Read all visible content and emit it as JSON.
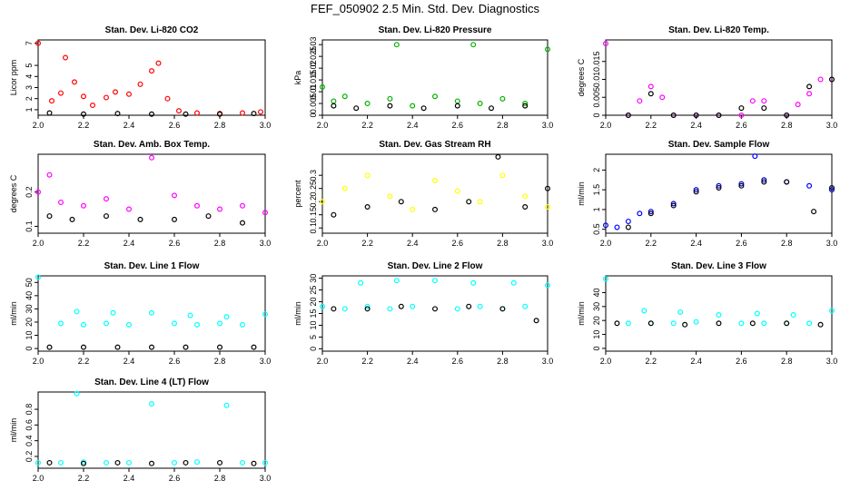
{
  "figure_title": "FEF_050902  2.5 Min. Std. Dev. Diagnostics",
  "chart_data": [
    {
      "type": "scatter",
      "title": "Stan. Dev. Li-820 CO2",
      "ylabel": "Licor ppm",
      "xlim": [
        2.0,
        3.0
      ],
      "ylim": [
        0.5,
        7.3
      ],
      "xticks": [
        2.0,
        2.2,
        2.4,
        2.6,
        2.8,
        3.0
      ],
      "yticks": [
        1,
        2,
        3,
        4,
        5,
        7
      ],
      "colors": [
        "#ff0000",
        "#000000"
      ],
      "series": [
        {
          "color": "#ff0000",
          "x": [
            2.0,
            2.06,
            2.1,
            2.12,
            2.16,
            2.2,
            2.24,
            2.3,
            2.34,
            2.4,
            2.45,
            2.5,
            2.53,
            2.57,
            2.62,
            2.7,
            2.8,
            2.9,
            2.98
          ],
          "y": [
            7.0,
            1.8,
            2.5,
            5.7,
            3.5,
            2.2,
            1.4,
            2.1,
            2.6,
            2.4,
            3.3,
            4.5,
            5.2,
            2.0,
            0.9,
            0.7,
            0.65,
            0.7,
            0.8
          ]
        },
        {
          "color": "#000000",
          "x": [
            2.05,
            2.2,
            2.35,
            2.5,
            2.65,
            2.8,
            2.95
          ],
          "y": [
            0.7,
            0.6,
            0.65,
            0.6,
            0.6,
            0.6,
            0.65
          ]
        }
      ]
    },
    {
      "type": "scatter",
      "title": "Stan. Dev. Li-820 Pressure",
      "ylabel": "kPa",
      "xlim": [
        2.0,
        3.0
      ],
      "ylim": [
        0,
        0.032
      ],
      "xticks": [
        2.0,
        2.2,
        2.4,
        2.6,
        2.8,
        3.0
      ],
      "yticks": [
        0.0,
        0.005,
        0.01,
        0.015,
        0.02,
        0.025,
        0.03
      ],
      "colors": [
        "#00b000",
        "#000000"
      ],
      "series": [
        {
          "color": "#00b000",
          "x": [
            2.0,
            2.05,
            2.1,
            2.2,
            2.3,
            2.33,
            2.4,
            2.5,
            2.6,
            2.67,
            2.7,
            2.8,
            2.9,
            3.0
          ],
          "y": [
            0.012,
            0.006,
            0.008,
            0.005,
            0.007,
            0.03,
            0.004,
            0.008,
            0.006,
            0.03,
            0.005,
            0.007,
            0.005,
            0.028
          ]
        },
        {
          "color": "#000000",
          "x": [
            2.05,
            2.15,
            2.3,
            2.45,
            2.6,
            2.75,
            2.9
          ],
          "y": [
            0.004,
            0.003,
            0.004,
            0.003,
            0.004,
            0.003,
            0.004
          ]
        }
      ]
    },
    {
      "type": "scatter",
      "title": "Stan. Dev. Li-820 Temp.",
      "ylabel": "degrees C",
      "xlim": [
        2.0,
        3.0
      ],
      "ylim": [
        0,
        0.021
      ],
      "xticks": [
        2.0,
        2.2,
        2.4,
        2.6,
        2.8,
        3.0
      ],
      "yticks": [
        0.0,
        0.005,
        0.01,
        0.015
      ],
      "colors": [
        "#ff00ff",
        "#000000"
      ],
      "series": [
        {
          "color": "#ff00ff",
          "x": [
            2.0,
            2.1,
            2.15,
            2.2,
            2.25,
            2.3,
            2.4,
            2.5,
            2.6,
            2.65,
            2.7,
            2.8,
            2.85,
            2.9,
            2.95,
            3.0
          ],
          "y": [
            0.02,
            0.0,
            0.004,
            0.008,
            0.005,
            0.0,
            0.0,
            0.0,
            0.0,
            0.004,
            0.004,
            0.0,
            0.003,
            0.006,
            0.01,
            0.01
          ]
        },
        {
          "color": "#000000",
          "x": [
            2.1,
            2.2,
            2.3,
            2.4,
            2.5,
            2.6,
            2.7,
            2.8,
            2.9,
            3.0
          ],
          "y": [
            0.0,
            0.006,
            0.0,
            0.0,
            0.0,
            0.002,
            0.002,
            0.0,
            0.008,
            0.01
          ]
        }
      ]
    },
    {
      "type": "scatter",
      "title": "Stan. Dev. Amb. Box Temp.",
      "ylabel": "degrees C",
      "xlim": [
        2.0,
        3.0
      ],
      "ylim": [
        0.08,
        0.31
      ],
      "xticks": [
        2.0,
        2.2,
        2.4,
        2.6,
        2.8,
        3.0
      ],
      "yticks": [
        0.1,
        0.2
      ],
      "colors": [
        "#ff00ff",
        "#000000"
      ],
      "series": [
        {
          "color": "#ff00ff",
          "x": [
            2.0,
            2.05,
            2.1,
            2.2,
            2.3,
            2.4,
            2.5,
            2.6,
            2.7,
            2.8,
            2.9,
            3.0
          ],
          "y": [
            0.2,
            0.25,
            0.17,
            0.16,
            0.18,
            0.15,
            0.3,
            0.19,
            0.16,
            0.15,
            0.16,
            0.14
          ]
        },
        {
          "color": "#000000",
          "x": [
            2.05,
            2.15,
            2.3,
            2.45,
            2.6,
            2.75,
            2.9
          ],
          "y": [
            0.13,
            0.12,
            0.13,
            0.12,
            0.12,
            0.13,
            0.11
          ]
        }
      ]
    },
    {
      "type": "scatter",
      "title": "Stan. Dev. Gas Stream RH",
      "ylabel": "percent",
      "xlim": [
        2.0,
        3.0
      ],
      "ylim": [
        0.08,
        0.38
      ],
      "xticks": [
        2.0,
        2.2,
        2.4,
        2.6,
        2.8,
        3.0
      ],
      "yticks": [
        0.1,
        0.15,
        0.2,
        0.25,
        0.3
      ],
      "colors": [
        "#ffff00",
        "#000000"
      ],
      "series": [
        {
          "color": "#ffff00",
          "x": [
            2.0,
            2.1,
            2.2,
            2.3,
            2.4,
            2.5,
            2.6,
            2.7,
            2.8,
            2.9,
            3.0
          ],
          "y": [
            0.2,
            0.25,
            0.3,
            0.22,
            0.17,
            0.28,
            0.24,
            0.2,
            0.3,
            0.22,
            0.18
          ]
        },
        {
          "color": "#000000",
          "x": [
            2.05,
            2.2,
            2.35,
            2.5,
            2.65,
            2.78,
            2.9,
            3.0
          ],
          "y": [
            0.15,
            0.18,
            0.2,
            0.17,
            0.2,
            0.37,
            0.18,
            0.25
          ]
        }
      ]
    },
    {
      "type": "scatter",
      "title": "Stan. Dev. Sample Flow",
      "ylabel": "ml/min",
      "xlim": [
        2.0,
        3.0
      ],
      "ylim": [
        0.4,
        2.4
      ],
      "xticks": [
        2.0,
        2.2,
        2.4,
        2.6,
        2.8,
        3.0
      ],
      "yticks": [
        0.5,
        1.0,
        1.5,
        2.0
      ],
      "colors": [
        "#0000ff",
        "#000000"
      ],
      "series": [
        {
          "color": "#0000ff",
          "x": [
            2.0,
            2.05,
            2.1,
            2.15,
            2.2,
            2.3,
            2.4,
            2.5,
            2.6,
            2.66,
            2.7,
            2.8,
            2.9,
            3.0
          ],
          "y": [
            0.6,
            0.55,
            0.7,
            0.9,
            0.95,
            1.15,
            1.5,
            1.6,
            1.65,
            2.35,
            1.75,
            1.7,
            1.6,
            1.5
          ]
        },
        {
          "color": "#000000",
          "x": [
            2.1,
            2.2,
            2.3,
            2.4,
            2.5,
            2.6,
            2.7,
            2.8,
            2.92,
            3.0
          ],
          "y": [
            0.55,
            0.9,
            1.1,
            1.45,
            1.55,
            1.6,
            1.7,
            1.7,
            0.95,
            1.55
          ]
        }
      ]
    },
    {
      "type": "scatter",
      "title": "Stan. Dev. Line 1 Flow",
      "ylabel": "ml/min",
      "xlim": [
        2.0,
        3.0
      ],
      "ylim": [
        -2,
        55
      ],
      "xticks": [
        2.0,
        2.2,
        2.4,
        2.6,
        2.8,
        3.0
      ],
      "yticks": [
        0,
        10,
        20,
        30,
        40,
        50
      ],
      "colors": [
        "#00ffff",
        "#000000"
      ],
      "series": [
        {
          "color": "#00ffff",
          "x": [
            2.0,
            2.1,
            2.17,
            2.2,
            2.3,
            2.33,
            2.4,
            2.5,
            2.6,
            2.67,
            2.7,
            2.8,
            2.83,
            2.9,
            3.0
          ],
          "y": [
            54,
            19,
            28,
            18,
            19,
            27,
            18,
            27,
            19,
            25,
            18,
            19,
            24,
            18,
            26
          ]
        },
        {
          "color": "#000000",
          "x": [
            2.05,
            2.2,
            2.35,
            2.5,
            2.65,
            2.8,
            2.95
          ],
          "y": [
            1,
            1,
            1,
            1,
            1,
            1,
            1
          ]
        }
      ]
    },
    {
      "type": "scatter",
      "title": "Stan. Dev. Line 2 Flow",
      "ylabel": "ml/min",
      "xlim": [
        2.0,
        3.0
      ],
      "ylim": [
        -1,
        31
      ],
      "xticks": [
        2.0,
        2.2,
        2.4,
        2.6,
        2.8,
        3.0
      ],
      "yticks": [
        0,
        5,
        10,
        15,
        20,
        25,
        30
      ],
      "colors": [
        "#00ffff",
        "#000000"
      ],
      "series": [
        {
          "color": "#00ffff",
          "x": [
            2.0,
            2.1,
            2.17,
            2.2,
            2.3,
            2.33,
            2.4,
            2.5,
            2.6,
            2.67,
            2.7,
            2.8,
            2.85,
            2.9,
            3.0
          ],
          "y": [
            18,
            17,
            28,
            18,
            17,
            29,
            18,
            29,
            17,
            28,
            18,
            17,
            28,
            18,
            27
          ]
        },
        {
          "color": "#000000",
          "x": [
            2.05,
            2.2,
            2.35,
            2.5,
            2.65,
            2.8,
            2.95
          ],
          "y": [
            17,
            17,
            18,
            17,
            18,
            17,
            12
          ]
        }
      ]
    },
    {
      "type": "scatter",
      "title": "Stan. Dev. Line 3 Flow",
      "ylabel": "ml/min",
      "xlim": [
        2.0,
        3.0
      ],
      "ylim": [
        -2,
        52
      ],
      "xticks": [
        2.0,
        2.2,
        2.4,
        2.6,
        2.8,
        3.0
      ],
      "yticks": [
        0,
        10,
        20,
        30,
        40
      ],
      "colors": [
        "#00ffff",
        "#000000"
      ],
      "series": [
        {
          "color": "#00ffff",
          "x": [
            2.0,
            2.1,
            2.17,
            2.2,
            2.3,
            2.33,
            2.4,
            2.5,
            2.6,
            2.67,
            2.7,
            2.8,
            2.83,
            2.9,
            3.0
          ],
          "y": [
            50,
            18,
            27,
            18,
            18,
            26,
            19,
            24,
            18,
            25,
            18,
            18,
            24,
            18,
            27
          ]
        },
        {
          "color": "#000000",
          "x": [
            2.05,
            2.2,
            2.35,
            2.5,
            2.65,
            2.8,
            2.95
          ],
          "y": [
            18,
            18,
            17,
            18,
            18,
            18,
            17
          ]
        }
      ]
    },
    {
      "type": "scatter",
      "title": "Stan. Dev. Line 4 (LT) Flow",
      "ylabel": "ml/min",
      "xlim": [
        2.0,
        3.0
      ],
      "ylim": [
        0.05,
        1.02
      ],
      "xticks": [
        2.0,
        2.2,
        2.4,
        2.6,
        2.8,
        3.0
      ],
      "yticks": [
        0.2,
        0.4,
        0.6,
        0.8
      ],
      "colors": [
        "#00ffff",
        "#000000"
      ],
      "series": [
        {
          "color": "#00ffff",
          "x": [
            2.0,
            2.1,
            2.17,
            2.2,
            2.3,
            2.4,
            2.5,
            2.6,
            2.7,
            2.83,
            2.9,
            3.0
          ],
          "y": [
            0.12,
            0.12,
            1.0,
            0.13,
            0.12,
            0.12,
            0.87,
            0.12,
            0.13,
            0.85,
            0.12,
            0.12
          ]
        },
        {
          "color": "#000000",
          "x": [
            2.05,
            2.2,
            2.35,
            2.5,
            2.65,
            2.8,
            2.95
          ],
          "y": [
            0.12,
            0.11,
            0.12,
            0.11,
            0.12,
            0.12,
            0.11
          ]
        }
      ]
    }
  ]
}
